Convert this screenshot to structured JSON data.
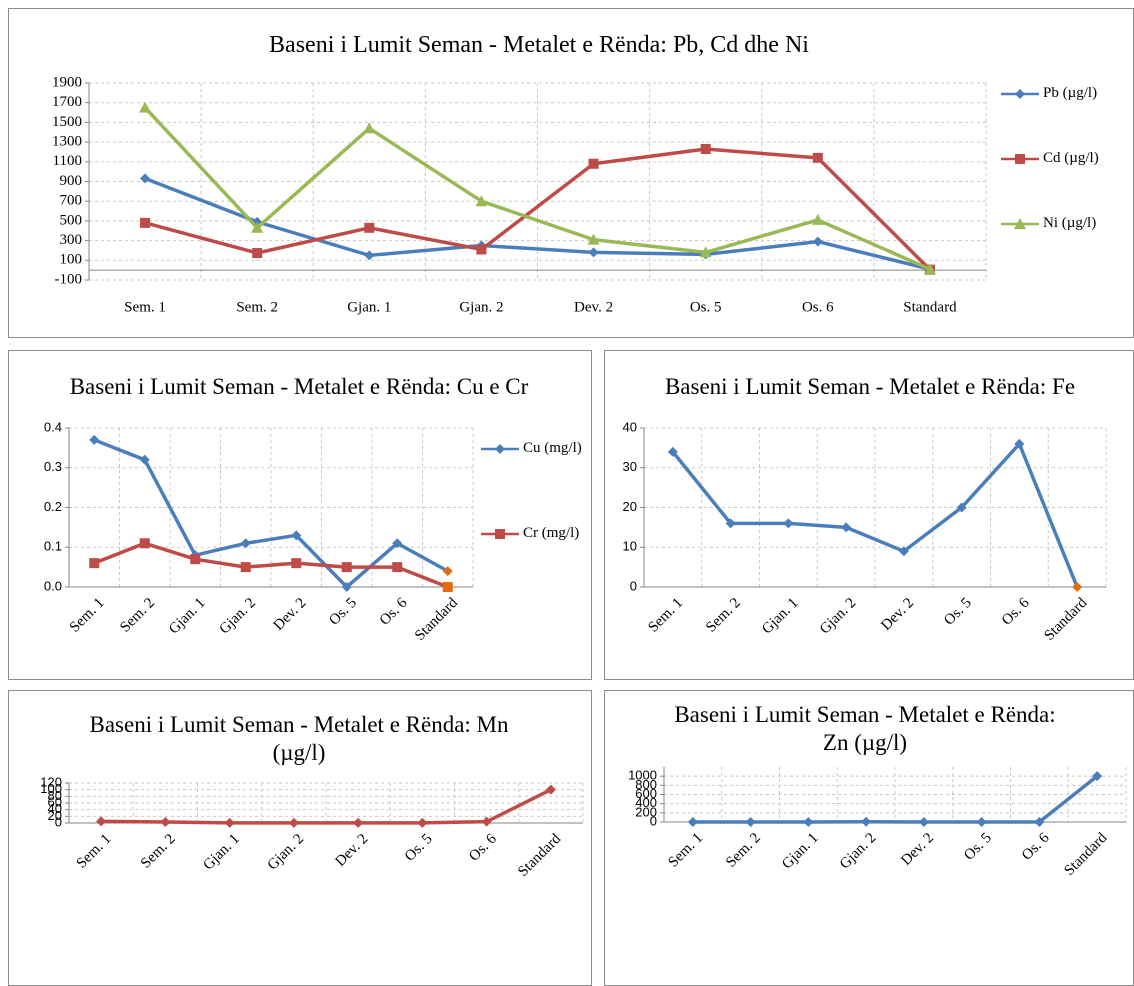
{
  "chart_data": [
    {
      "type": "line",
      "title": "Baseni i Lumit Seman - Metalet e Rënda: Pb, Cd dhe Ni",
      "categories": [
        "Sem. 1",
        "Sem. 2",
        "Gjan. 1",
        "Gjan. 2",
        "Dev. 2",
        "Os. 5",
        "Os. 6",
        "Standard"
      ],
      "series": [
        {
          "name": "Pb (µg/l)",
          "color": "#4a7ebb",
          "marker": "diamond",
          "values": [
            930,
            490,
            150,
            250,
            180,
            160,
            290,
            10
          ]
        },
        {
          "name": "Cd (µg/l)",
          "color": "#be4b48",
          "marker": "square",
          "values": [
            480,
            174,
            430,
            210,
            1080,
            1230,
            1140,
            5
          ]
        },
        {
          "name": "Ni (µg/l)",
          "color": "#98b954",
          "marker": "triangle",
          "values": [
            1650,
            430,
            1440,
            700,
            310,
            180,
            510,
            10
          ]
        }
      ],
      "ylim": [
        -100,
        1900
      ],
      "yticks": [
        -100,
        100,
        300,
        500,
        700,
        900,
        1100,
        1300,
        1500,
        1700,
        1900
      ],
      "grid": true,
      "legend": "right"
    },
    {
      "type": "line",
      "title": "Baseni i Lumit Seman - Metalet e Rënda: Cu e Cr",
      "categories": [
        "Sem. 1",
        "Sem. 2",
        "Gjan. 1",
        "Gjan. 2",
        "Dev. 2",
        "Os. 5",
        "Os. 6",
        "Standard"
      ],
      "series": [
        {
          "name": "Cu (mg/l)",
          "color": "#4a7ebb",
          "marker": "diamond",
          "last_point_color": "#e46c0a",
          "values": [
            0.37,
            0.32,
            0.08,
            0.11,
            0.13,
            0.0,
            0.11,
            0.04
          ]
        },
        {
          "name": "Cr (mg/l)",
          "color": "#be4b48",
          "marker": "square",
          "last_point_color": "#e46c0a",
          "values": [
            0.06,
            0.11,
            0.07,
            0.05,
            0.06,
            0.05,
            0.05,
            0.0
          ]
        }
      ],
      "ylim": [
        0,
        0.4
      ],
      "yticks": [
        {
          "value": 0,
          "label": "0.0"
        },
        0.1,
        0.2,
        0.3,
        0.4
      ],
      "grid": true,
      "legend": "right"
    },
    {
      "type": "line",
      "title": "Baseni i Lumit Seman - Metalet e Rënda: Fe",
      "categories": [
        "Sem. 1",
        "Sem. 2",
        "Gjan. 1",
        "Gjan. 2",
        "Dev. 2",
        "Os. 5",
        "Os. 6",
        "Standard"
      ],
      "series": [
        {
          "color": "#4a7ebb",
          "marker": "diamond",
          "last_point_color": "#e46c0a",
          "values": [
            34,
            16,
            16,
            15,
            9,
            20,
            36,
            0
          ]
        }
      ],
      "ylim": [
        0,
        40
      ],
      "yticks": [
        0,
        10,
        20,
        30,
        40
      ],
      "grid": true
    },
    {
      "type": "line",
      "title": "Baseni i Lumit Seman - Metalet e Rënda: Mn (µg/l)",
      "categories": [
        "Sem. 1",
        "Sem. 2",
        "Gjan. 1",
        "Gjan. 2",
        "Dev. 2",
        "Os. 5",
        "Os. 6",
        "Standard"
      ],
      "series": [
        {
          "color": "#be4b48",
          "marker": "diamond",
          "values": [
            5,
            3,
            0.5,
            0.5,
            0.5,
            0.5,
            4,
            100
          ]
        }
      ],
      "ylim": [
        0,
        120
      ],
      "yticks": [
        0,
        20,
        40,
        60,
        80,
        100,
        120
      ],
      "grid": true
    },
    {
      "type": "line",
      "title": "Baseni i Lumit Seman - Metalet e Rënda: Zn (µg/l)",
      "categories": [
        "Sem. 1",
        "Sem. 2",
        "Gjan. 1",
        "Gjan. 2",
        "Dev. 2",
        "Os. 5",
        "Os. 6",
        "Standard"
      ],
      "series": [
        {
          "color": "#4a7ebb",
          "marker": "diamond",
          "values": [
            0,
            0,
            0,
            5,
            0,
            0,
            0,
            1000
          ]
        }
      ],
      "ylim": [
        0,
        1200
      ],
      "yticks": [
        0,
        200,
        400,
        600,
        800,
        1000
      ],
      "grid": true
    }
  ]
}
